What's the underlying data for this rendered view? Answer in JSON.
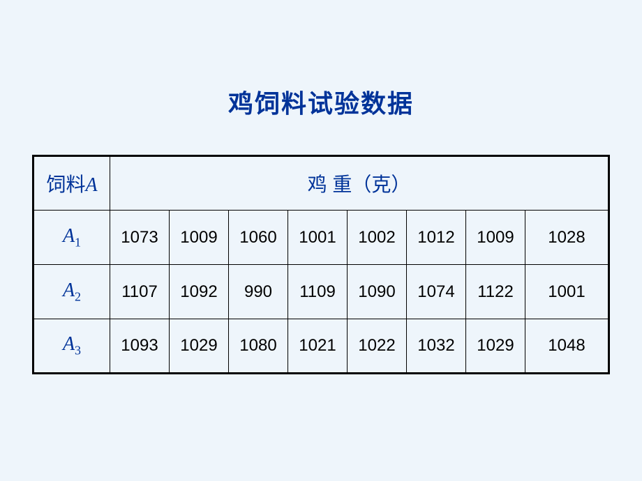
{
  "title": "鸡饲料试验数据",
  "table": {
    "header_label_prefix": "饲料",
    "header_label_var": "A",
    "header_span": "鸡  重（克）",
    "row_labels": [
      {
        "base": "A",
        "sub": "1"
      },
      {
        "base": "A",
        "sub": "2"
      },
      {
        "base": "A",
        "sub": "3"
      }
    ],
    "rows": [
      [
        "1073",
        "1009",
        "1060",
        "1001",
        "1002",
        "1012",
        "1009",
        "1028"
      ],
      [
        "1107",
        "1092",
        "990",
        "1109",
        "1090",
        "1074",
        "1122",
        "1001"
      ],
      [
        "1093",
        "1029",
        "1080",
        "1021",
        "1022",
        "1032",
        "1029",
        "1048"
      ]
    ],
    "num_data_columns": 8
  },
  "colors": {
    "background": "#eef5fb",
    "title_color": "#003399",
    "border_color": "#000000",
    "data_text_color": "#000000"
  },
  "typography": {
    "title_fontsize": 36,
    "header_fontsize": 28,
    "row_label_fontsize": 28,
    "data_fontsize": 24
  }
}
